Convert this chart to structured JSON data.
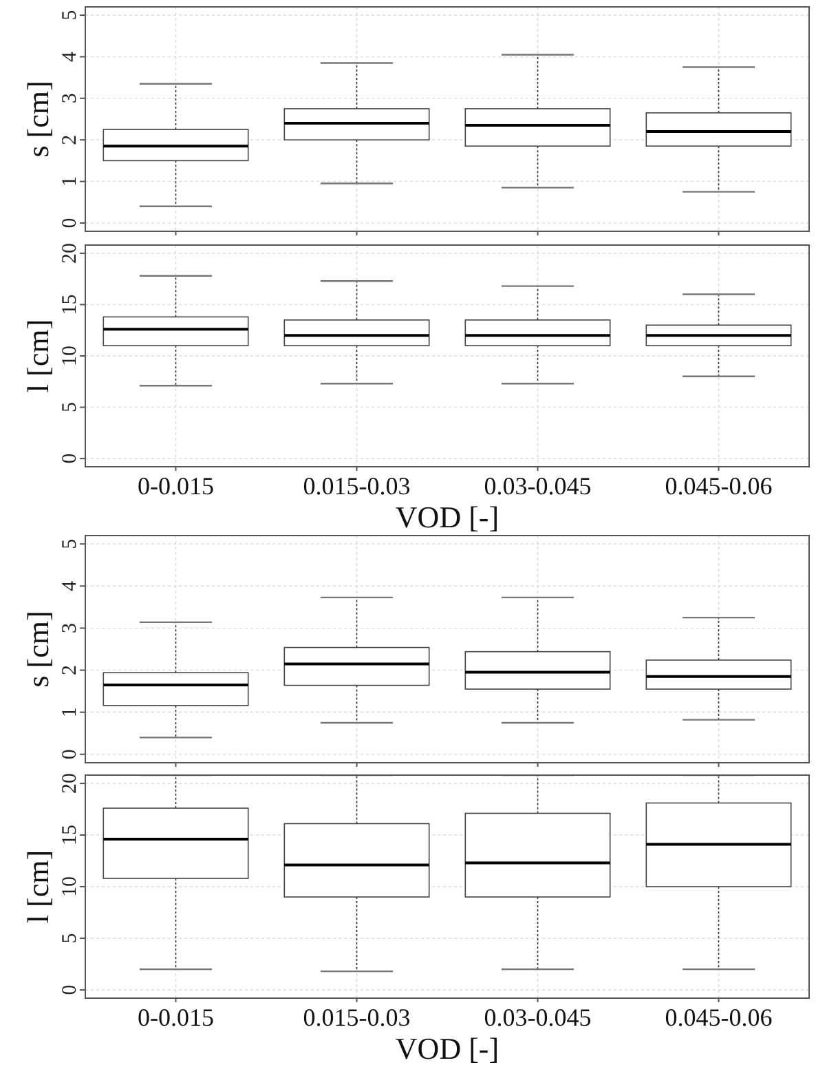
{
  "chart_data": [
    {
      "type": "box",
      "ylabel": "s [cm]",
      "categories": [
        null,
        null,
        null,
        null
      ],
      "ylim": [
        -0.2,
        5.2
      ],
      "yticks": [
        0,
        1,
        2,
        3,
        4,
        5
      ],
      "grid": true,
      "tick_labels": "y",
      "boxes": [
        {
          "low": 0.4,
          "q1": 1.5,
          "median": 1.85,
          "q3": 2.25,
          "high": 3.35
        },
        {
          "low": 0.95,
          "q1": 2.0,
          "median": 2.4,
          "q3": 2.75,
          "high": 3.85
        },
        {
          "low": 0.85,
          "q1": 1.85,
          "median": 2.35,
          "q3": 2.75,
          "high": 4.05
        },
        {
          "low": 0.75,
          "q1": 1.85,
          "median": 2.2,
          "q3": 2.65,
          "high": 3.75
        }
      ]
    },
    {
      "type": "box",
      "ylabel": "l [cm]",
      "xlabel": "VOD [-]",
      "categories": [
        "0-0.015",
        "0.015-0.03",
        "0.03-0.045",
        "0.045-0.06"
      ],
      "ylim": [
        -0.8,
        20.8
      ],
      "yticks": [
        0,
        5,
        10,
        15,
        20
      ],
      "grid": true,
      "boxes": [
        {
          "low": 7.1,
          "q1": 11.0,
          "median": 12.6,
          "q3": 13.8,
          "high": 17.8
        },
        {
          "low": 7.3,
          "q1": 11.0,
          "median": 12.0,
          "q3": 13.5,
          "high": 17.3
        },
        {
          "low": 7.3,
          "q1": 11.0,
          "median": 12.0,
          "q3": 13.5,
          "high": 16.8
        },
        {
          "low": 8.0,
          "q1": 11.0,
          "median": 12.0,
          "q3": 13.0,
          "high": 16.0
        }
      ]
    },
    {
      "type": "box",
      "ylabel": "s [cm]",
      "categories": [
        null,
        null,
        null,
        null
      ],
      "ylim": [
        -0.2,
        5.2
      ],
      "yticks": [
        0,
        1,
        2,
        3,
        4,
        5
      ],
      "grid": true,
      "tick_labels": "y",
      "boxes": [
        {
          "low": 0.4,
          "q1": 1.16,
          "median": 1.65,
          "q3": 1.94,
          "high": 3.14
        },
        {
          "low": 0.75,
          "q1": 1.64,
          "median": 2.15,
          "q3": 2.54,
          "high": 3.73
        },
        {
          "low": 0.75,
          "q1": 1.55,
          "median": 1.95,
          "q3": 2.44,
          "high": 3.73
        },
        {
          "low": 0.82,
          "q1": 1.55,
          "median": 1.85,
          "q3": 2.24,
          "high": 3.25
        }
      ]
    },
    {
      "type": "box",
      "ylabel": "l [cm]",
      "xlabel": "VOD [-]",
      "categories": [
        "0-0.015",
        "0.015-0.03",
        "0.03-0.045",
        "0.045-0.06"
      ],
      "ylim": [
        -0.8,
        20.8
      ],
      "yticks": [
        0,
        5,
        10,
        15,
        20
      ],
      "grid": true,
      "boxes": [
        {
          "low": 2.0,
          "q1": 10.8,
          "median": 14.6,
          "q3": 17.6,
          "high": 20.8
        },
        {
          "low": 1.8,
          "q1": 9.0,
          "median": 12.1,
          "q3": 16.1,
          "high": 20.8
        },
        {
          "low": 2.0,
          "q1": 9.0,
          "median": 12.3,
          "q3": 17.1,
          "high": 20.8
        },
        {
          "low": 2.0,
          "q1": 10.0,
          "median": 14.1,
          "q3": 18.1,
          "high": 20.8
        }
      ]
    }
  ]
}
